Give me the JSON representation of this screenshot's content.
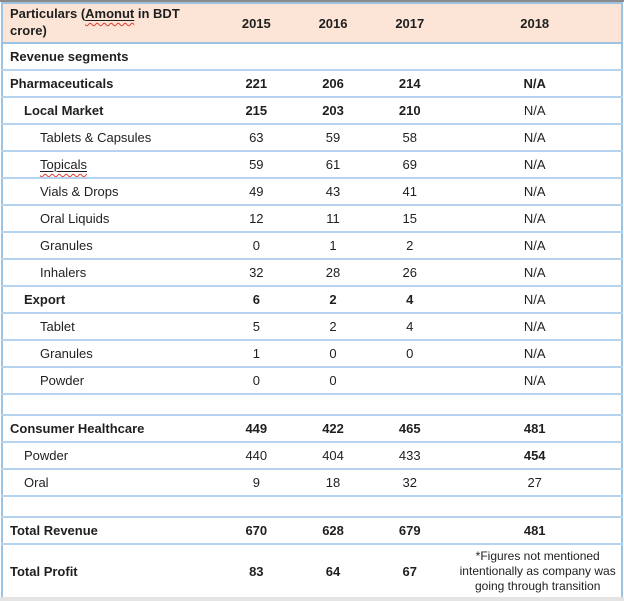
{
  "colors": {
    "header_bg": "#fce4d6",
    "border_outer": "#9cc3e4",
    "border_inner": "#b5d3ec",
    "wavy_red": "#e0392e"
  },
  "header": {
    "particulars_prefix": "Particulars (",
    "particulars_misspelled": "Amonut",
    "particulars_suffix": " in BDT crore)",
    "years": [
      "2015",
      "2016",
      "2017",
      "2018"
    ]
  },
  "rows": [
    {
      "label": "Revenue segments",
      "indent": 0,
      "labelBold": true,
      "values": [
        "",
        "",
        "",
        ""
      ],
      "vbold": [
        false,
        false,
        false,
        false
      ]
    },
    {
      "label": "Pharmaceuticals",
      "indent": 0,
      "labelBold": true,
      "values": [
        "221",
        "206",
        "214",
        "N/A"
      ],
      "vbold": [
        true,
        true,
        true,
        true
      ]
    },
    {
      "label": "Local Market",
      "indent": 1,
      "labelBold": true,
      "values": [
        "215",
        "203",
        "210",
        "N/A"
      ],
      "vbold": [
        true,
        true,
        true,
        false
      ]
    },
    {
      "label": "Tablets & Capsules",
      "indent": 2,
      "labelBold": false,
      "values": [
        "63",
        "59",
        "58",
        "N/A"
      ],
      "vbold": [
        false,
        false,
        false,
        false
      ]
    },
    {
      "label": "Topicals",
      "indent": 2,
      "labelBold": false,
      "misspelled": true,
      "values": [
        "59",
        "61",
        "69",
        "N/A"
      ],
      "vbold": [
        false,
        false,
        false,
        false
      ]
    },
    {
      "label": "Vials & Drops",
      "indent": 2,
      "labelBold": false,
      "values": [
        "49",
        "43",
        "41",
        "N/A"
      ],
      "vbold": [
        false,
        false,
        false,
        false
      ]
    },
    {
      "label": "Oral Liquids",
      "indent": 2,
      "labelBold": false,
      "values": [
        "12",
        "11",
        "15",
        "N/A"
      ],
      "vbold": [
        false,
        false,
        false,
        false
      ]
    },
    {
      "label": "Granules",
      "indent": 2,
      "labelBold": false,
      "values": [
        "0",
        "1",
        "2",
        "N/A"
      ],
      "vbold": [
        false,
        false,
        false,
        false
      ]
    },
    {
      "label": "Inhalers",
      "indent": 2,
      "labelBold": false,
      "values": [
        "32",
        "28",
        "26",
        "N/A"
      ],
      "vbold": [
        false,
        false,
        false,
        false
      ]
    },
    {
      "label": "Export",
      "indent": 1,
      "labelBold": true,
      "values": [
        "6",
        "2",
        "4",
        "N/A"
      ],
      "vbold": [
        true,
        true,
        true,
        false
      ]
    },
    {
      "label": "Tablet",
      "indent": 2,
      "labelBold": false,
      "values": [
        "5",
        "2",
        "4",
        "N/A"
      ],
      "vbold": [
        false,
        false,
        false,
        false
      ]
    },
    {
      "label": "Granules",
      "indent": 2,
      "labelBold": false,
      "values": [
        "1",
        "0",
        "0",
        "N/A"
      ],
      "vbold": [
        false,
        false,
        false,
        false
      ]
    },
    {
      "label": "Powder",
      "indent": 2,
      "labelBold": false,
      "values": [
        "0",
        "0",
        "",
        "N/A"
      ],
      "vbold": [
        false,
        false,
        false,
        false
      ]
    },
    {
      "spacer": true
    },
    {
      "label": "Consumer Healthcare",
      "indent": 0,
      "labelBold": true,
      "values": [
        "449",
        "422",
        "465",
        "481"
      ],
      "vbold": [
        true,
        true,
        true,
        true
      ]
    },
    {
      "label": "Powder",
      "indent": 1,
      "labelBold": false,
      "values": [
        "440",
        "404",
        "433",
        "454"
      ],
      "vbold": [
        false,
        false,
        false,
        true
      ]
    },
    {
      "label": "Oral",
      "indent": 1,
      "labelBold": false,
      "values": [
        "9",
        "18",
        "32",
        "27"
      ],
      "vbold": [
        false,
        false,
        false,
        false
      ]
    },
    {
      "spacer": true
    },
    {
      "label": "Total Revenue",
      "indent": 0,
      "labelBold": true,
      "values": [
        "670",
        "628",
        "679",
        "481"
      ],
      "vbold": [
        true,
        true,
        true,
        true
      ]
    },
    {
      "label": "Total Profit",
      "indent": 0,
      "labelBold": true,
      "tall": true,
      "values": [
        "83",
        "64",
        "67",
        "*Figures not mentioned intentionally as company was going through transition"
      ],
      "vbold": [
        true,
        true,
        true,
        false
      ],
      "noteCol": 3
    }
  ]
}
